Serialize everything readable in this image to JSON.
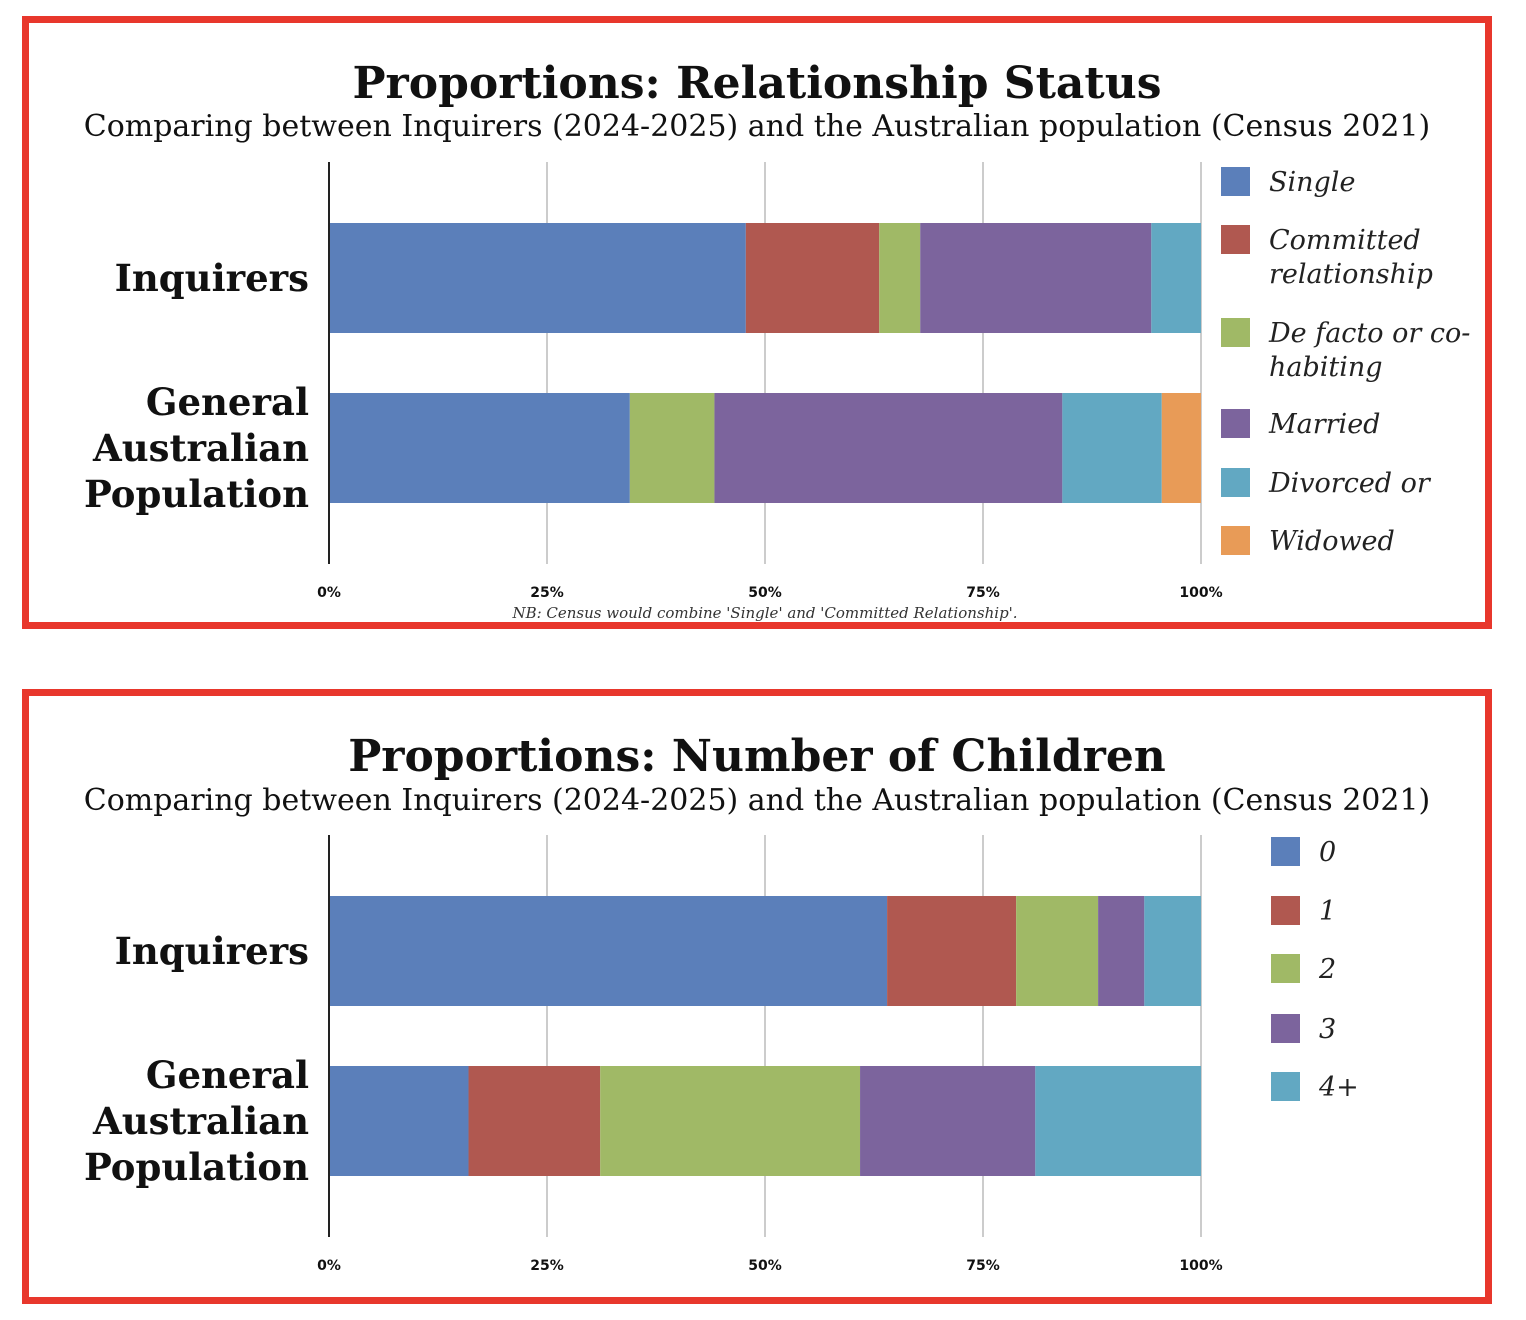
{
  "chart_data": [
    {
      "type": "bar",
      "orientation": "horizontal",
      "stacked": "100%",
      "title": "Proportions: Relationship Status",
      "subtitle": "Comparing between Inquirers (2024-2025) and the Australian population (Census 2021)",
      "categories": [
        {
          "lines": [
            "Inquirers"
          ]
        },
        {
          "lines": [
            "General",
            "Australian",
            "Population"
          ]
        }
      ],
      "series": [
        {
          "name": "Single",
          "legend_lines": [
            "Single"
          ],
          "color": "#5b7fba",
          "values": [
            47.8,
            34.5
          ]
        },
        {
          "name": "Committed relationship",
          "legend_lines": [
            "Committed",
            "relationship"
          ],
          "color": "#b05850",
          "values": [
            15.3,
            0
          ]
        },
        {
          "name": "De facto or co-habiting",
          "legend_lines": [
            "De facto or co-",
            "habiting"
          ],
          "color": "#a0b966",
          "values": [
            4.7,
            9.7
          ]
        },
        {
          "name": "Married",
          "legend_lines": [
            "Married"
          ],
          "color": "#7c649d",
          "values": [
            26.5,
            39.9
          ]
        },
        {
          "name": "Divorced or",
          "legend_lines": [
            "Divorced or"
          ],
          "color": "#62a8c2",
          "values": [
            5.7,
            11.4
          ]
        },
        {
          "name": "Widowed",
          "legend_lines": [
            "Widowed"
          ],
          "color": "#e89b57",
          "values": [
            0,
            4.5
          ]
        }
      ],
      "x_ticks": [
        "0%",
        "25%",
        "50%",
        "75%",
        "100%"
      ],
      "xlim": [
        0,
        100
      ],
      "grid": true,
      "legend_position": "right",
      "note": "NB: Census would combine 'Single' and 'Committed Relationship'."
    },
    {
      "type": "bar",
      "orientation": "horizontal",
      "stacked": "100%",
      "title": "Proportions: Number of Children",
      "subtitle": "Comparing between Inquirers (2024-2025) and the Australian population (Census 2021)",
      "categories": [
        {
          "lines": [
            "Inquirers"
          ]
        },
        {
          "lines": [
            "General",
            "Australian",
            "Population"
          ]
        }
      ],
      "series": [
        {
          "name": "0",
          "legend_lines": [
            "0"
          ],
          "color": "#5b7fba",
          "values": [
            64.0,
            16.0
          ]
        },
        {
          "name": "1",
          "legend_lines": [
            "1"
          ],
          "color": "#b05850",
          "values": [
            14.8,
            15.1
          ]
        },
        {
          "name": "2",
          "legend_lines": [
            "2"
          ],
          "color": "#a0b966",
          "values": [
            9.4,
            29.8
          ]
        },
        {
          "name": "3",
          "legend_lines": [
            "3"
          ],
          "color": "#7c649d",
          "values": [
            5.3,
            20.1
          ]
        },
        {
          "name": "4+",
          "legend_lines": [
            "4+"
          ],
          "color": "#62a8c2",
          "values": [
            6.5,
            19.0
          ]
        }
      ],
      "x_ticks": [
        "0%",
        "25%",
        "50%",
        "75%",
        "100%"
      ],
      "xlim": [
        0,
        100
      ],
      "grid": true,
      "legend_position": "right",
      "note": ""
    }
  ]
}
